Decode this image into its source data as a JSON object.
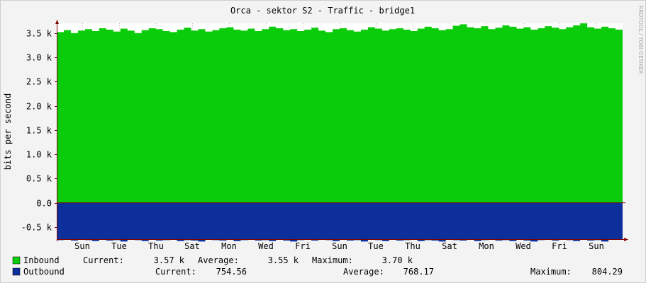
{
  "chart_data": {
    "type": "area",
    "title": "Orca - sektor S2 - Traffic - bridge1",
    "ylabel": "bits per second",
    "watermark": "RRDTOOL / TOBI OETIKER",
    "ylim": [
      -0.75,
      3.7
    ],
    "yticks": [
      {
        "v": 3.5,
        "label": "3.5 k"
      },
      {
        "v": 3.0,
        "label": "3.0 k"
      },
      {
        "v": 2.5,
        "label": "2.5 k"
      },
      {
        "v": 2.0,
        "label": "2.0 k"
      },
      {
        "v": 1.5,
        "label": "1.5 k"
      },
      {
        "v": 1.0,
        "label": "1.0 k"
      },
      {
        "v": 0.5,
        "label": "0.5 k"
      },
      {
        "v": 0.0,
        "label": "0.0"
      },
      {
        "v": -0.5,
        "label": "-0.5 k"
      }
    ],
    "xticks": [
      "Sun",
      "Tue",
      "Thu",
      "Sat",
      "Mon",
      "Wed",
      "Fri",
      "Sun",
      "Tue",
      "Thu",
      "Sat",
      "Mon",
      "Wed",
      "Fri",
      "Sun"
    ],
    "grid": true,
    "legend_placement": "bottom",
    "colors": {
      "inbound": "#0bcc0b",
      "outbound": "#0c2f9c",
      "background": "#f3f3f3",
      "canvas": "#ffffff",
      "grid": "#d8a0a0",
      "axis": "#800000"
    },
    "series": [
      {
        "name": "Inbound",
        "current": "3.57 k",
        "average": "3.55 k",
        "maximum": "3.70 k",
        "values": [
          3.52,
          3.56,
          3.5,
          3.55,
          3.58,
          3.54,
          3.6,
          3.57,
          3.53,
          3.59,
          3.55,
          3.5,
          3.56,
          3.6,
          3.58,
          3.54,
          3.52,
          3.57,
          3.61,
          3.55,
          3.58,
          3.53,
          3.56,
          3.6,
          3.62,
          3.57,
          3.55,
          3.59,
          3.54,
          3.58,
          3.63,
          3.6,
          3.56,
          3.58,
          3.54,
          3.57,
          3.61,
          3.55,
          3.52,
          3.58,
          3.6,
          3.56,
          3.53,
          3.57,
          3.62,
          3.59,
          3.55,
          3.58,
          3.6,
          3.57,
          3.54,
          3.59,
          3.63,
          3.6,
          3.56,
          3.58,
          3.65,
          3.68,
          3.62,
          3.6,
          3.64,
          3.58,
          3.61,
          3.66,
          3.63,
          3.59,
          3.62,
          3.57,
          3.6,
          3.64,
          3.61,
          3.58,
          3.62,
          3.66,
          3.7,
          3.62,
          3.59,
          3.63,
          3.6,
          3.57
        ]
      },
      {
        "name": "Outbound",
        "current": "754.56",
        "average": "768.17",
        "maximum": "804.29",
        "values": [
          -0.77,
          -0.76,
          -0.78,
          -0.75,
          -0.77,
          -0.79,
          -0.76,
          -0.78,
          -0.77,
          -0.8,
          -0.76,
          -0.77,
          -0.79,
          -0.75,
          -0.78,
          -0.77,
          -0.76,
          -0.79,
          -0.77,
          -0.78,
          -0.8,
          -0.76,
          -0.77,
          -0.78,
          -0.75,
          -0.79,
          -0.77,
          -0.76,
          -0.78,
          -0.77,
          -0.79,
          -0.76,
          -0.78,
          -0.8,
          -0.77,
          -0.76,
          -0.78,
          -0.75,
          -0.77,
          -0.79,
          -0.76,
          -0.78,
          -0.77,
          -0.8,
          -0.76,
          -0.77,
          -0.79,
          -0.75,
          -0.78,
          -0.77,
          -0.76,
          -0.79,
          -0.77,
          -0.78,
          -0.8,
          -0.76,
          -0.77,
          -0.78,
          -0.75,
          -0.79,
          -0.77,
          -0.76,
          -0.78,
          -0.77,
          -0.79,
          -0.76,
          -0.78,
          -0.8,
          -0.77,
          -0.76,
          -0.78,
          -0.75,
          -0.77,
          -0.79,
          -0.76,
          -0.78,
          -0.77,
          -0.8,
          -0.76,
          -0.75
        ]
      }
    ],
    "legend_labels": {
      "current": "Current:",
      "average": "Average:",
      "maximum": "Maximum:"
    }
  }
}
